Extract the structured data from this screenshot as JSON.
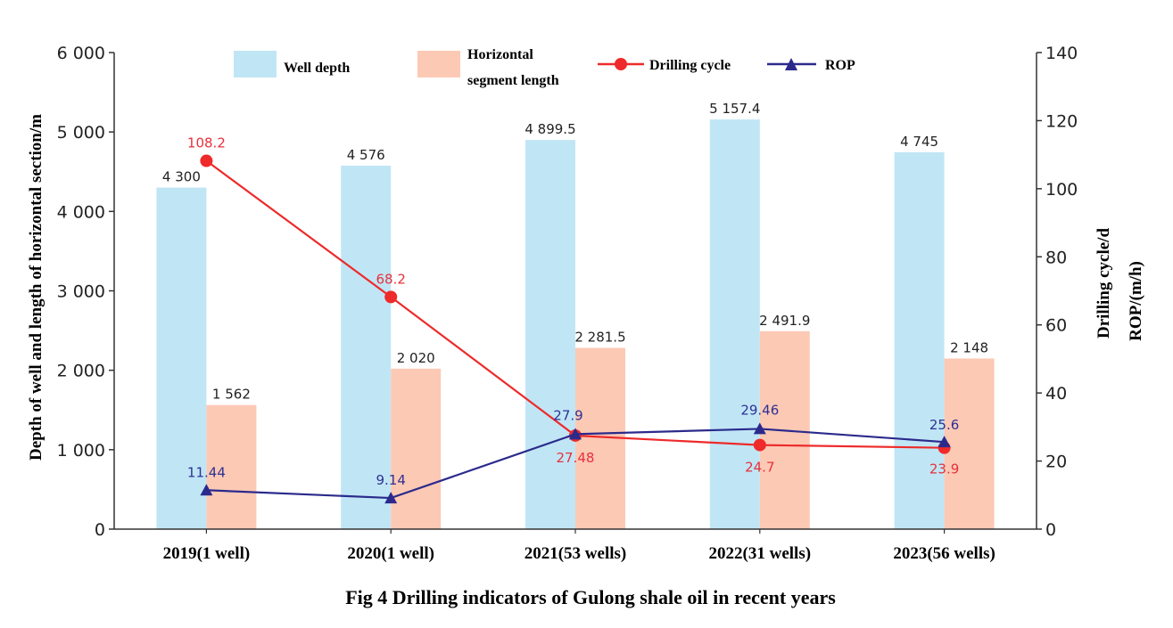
{
  "chart_data": {
    "type": "bar",
    "categories": [
      "2019(1 well)",
      "2020(1 well)",
      "2021(53 wells)",
      "2022(31 wells)",
      "2023(56 wells)"
    ],
    "series": [
      {
        "name": "Well depth",
        "kind": "bar",
        "axis": "left",
        "color": "#c0e6f6",
        "values": [
          4300,
          4576,
          4899.5,
          5157.4,
          4745
        ],
        "labels": [
          "4 300",
          "4 576",
          "4 899.5",
          "5 157.4",
          "4 745"
        ]
      },
      {
        "name": "Horizontal segment length",
        "legend_lines": [
          "Horizontal",
          "segment length"
        ],
        "kind": "bar",
        "axis": "left",
        "color": "#fcc9b5",
        "values": [
          1562,
          2020,
          2281.5,
          2491.9,
          2148
        ],
        "labels": [
          "1 562",
          "2 020",
          "2 281.5",
          "2 491.9",
          "2 148"
        ]
      },
      {
        "name": "Drilling cycle",
        "kind": "line",
        "axis": "right",
        "color": "#ee2a2a",
        "label_color": "#e8303a",
        "marker": "circle",
        "values": [
          108.2,
          68.2,
          27.48,
          24.7,
          23.9
        ],
        "labels": [
          "108.2",
          "68.2",
          "27.48",
          "24.7",
          "23.9"
        ]
      },
      {
        "name": "ROP",
        "kind": "line",
        "axis": "right",
        "color": "#2b2a8c",
        "label_color": "#2e3192",
        "marker": "triangle",
        "values": [
          11.44,
          9.14,
          27.9,
          29.46,
          25.6
        ],
        "labels": [
          "11.44",
          "9.14",
          "27.9",
          "29.46",
          "25.6"
        ]
      }
    ],
    "y_left": {
      "label": "Depth of well and length of horizontal section/m",
      "lim": [
        0,
        6000
      ],
      "ticks": [
        0,
        1000,
        2000,
        3000,
        4000,
        5000,
        6000
      ],
      "tick_labels": [
        "0",
        "1 000",
        "2 000",
        "3 000",
        "4 000",
        "5 000",
        "6 000"
      ]
    },
    "y_right": {
      "labels": [
        "Drilling cycle/d",
        "ROP/(m/h)"
      ],
      "lim": [
        0,
        140
      ],
      "ticks": [
        0,
        20,
        40,
        60,
        80,
        100,
        120,
        140
      ],
      "tick_labels": [
        "0",
        "20",
        "40",
        "60",
        "80",
        "100",
        "120",
        "140"
      ]
    },
    "legend_position": "top",
    "grid": false,
    "title": "Fig 4 Drilling indicators of Gulong shale oil in recent years"
  }
}
